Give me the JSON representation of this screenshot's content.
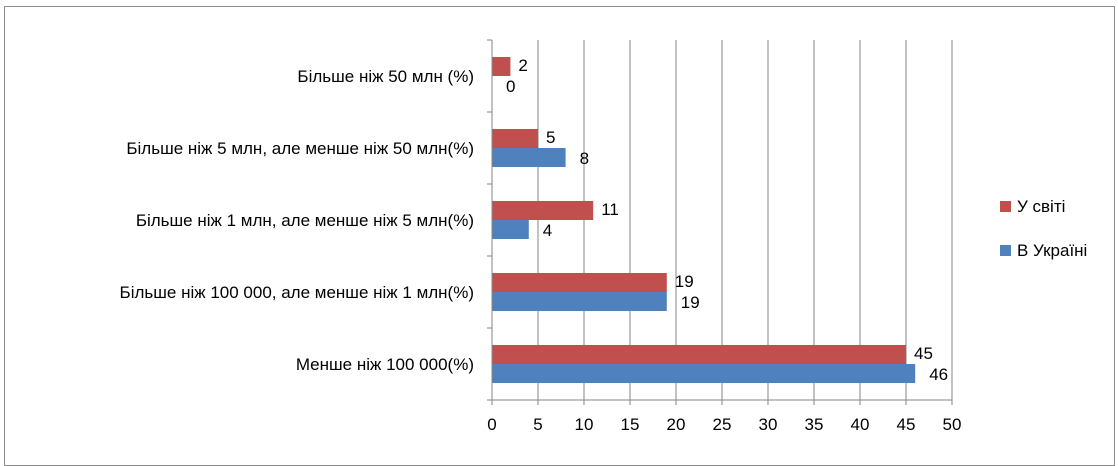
{
  "chart_data": {
    "type": "bar",
    "orientation": "horizontal",
    "title": "",
    "xlabel": "",
    "ylabel": "",
    "categories": [
      "Менше ніж 100 000(%)",
      "Більше ніж 100 000, але менше ніж 1 млн(%)",
      "Більше ніж 1 млн, але менше ніж 5 млн(%)",
      "Більше ніж 5 млн, але менше ніж 50 млн(%)",
      "Більше ніж 50 млн (%)"
    ],
    "series": [
      {
        "name": "В Україні",
        "color": "#4f81bd",
        "values": [
          46,
          19,
          4,
          8,
          0
        ]
      },
      {
        "name": "У світі",
        "color": "#c0504d",
        "values": [
          45,
          19,
          11,
          5,
          2
        ]
      }
    ],
    "xlim": [
      0,
      50
    ],
    "xticks": [
      "0",
      "5",
      "10",
      "15",
      "20",
      "25",
      "30",
      "35",
      "40",
      "45",
      "50"
    ],
    "grid": true,
    "legend_position": "right"
  }
}
